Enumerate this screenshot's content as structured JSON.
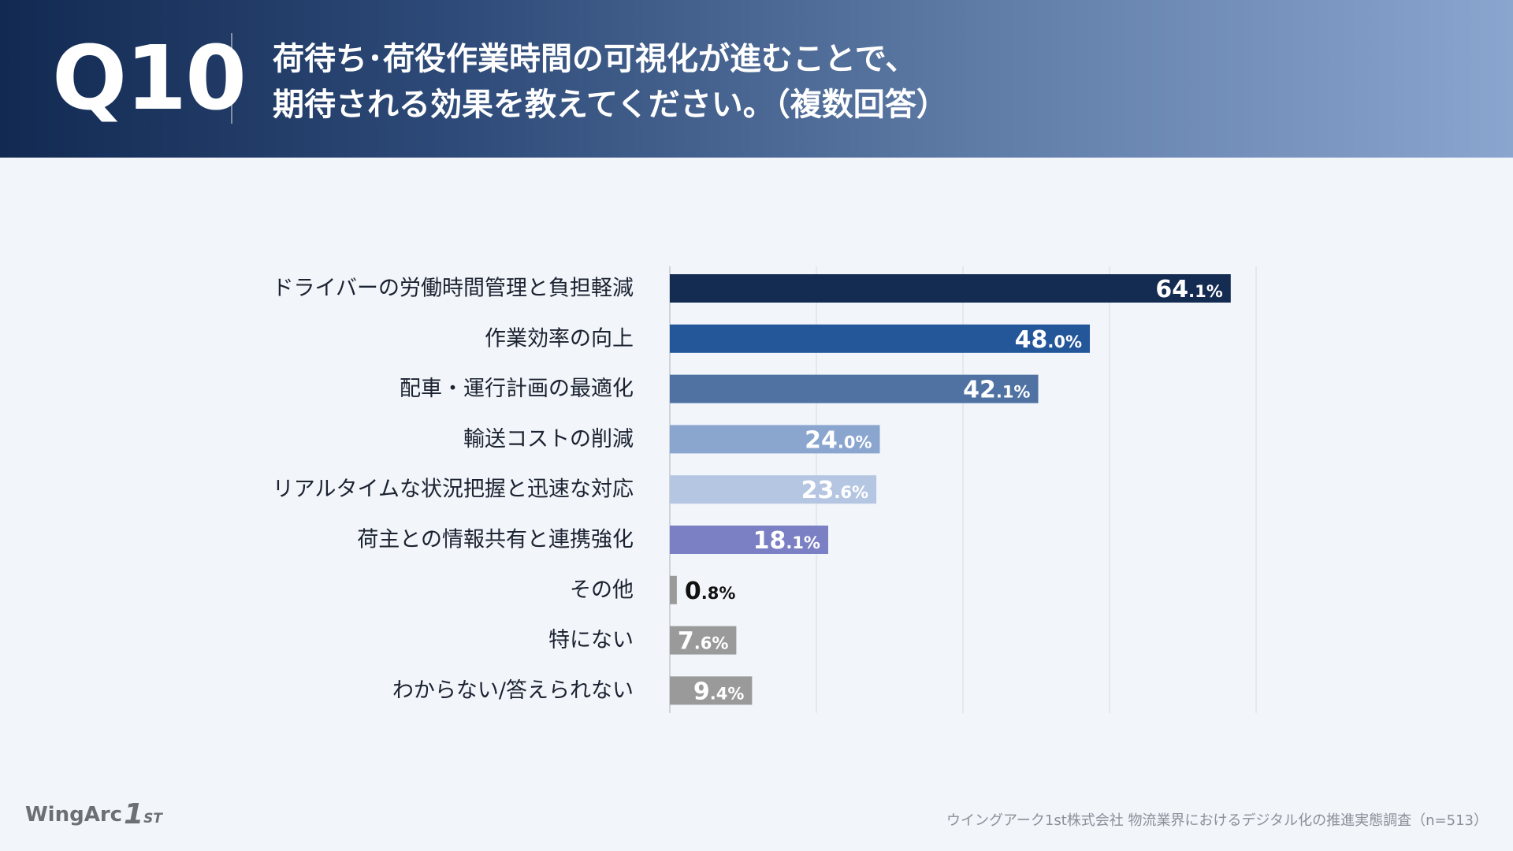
{
  "header": {
    "question_number": "Q10",
    "title_line1": "荷待ち･荷役作業時間の可視化が進むことで、",
    "title_line2": "期待される効果を教えてください。（複数回答）"
  },
  "chart_data": {
    "type": "bar",
    "orientation": "horizontal",
    "title": "荷待ち･荷役作業時間の可視化が進むことで、期待される効果を教えてください。（複数回答）",
    "categories": [
      "ドライバーの労働時間管理と負担軽減",
      "作業効率の向上",
      "配車・運行計画の最適化",
      "輸送コストの削減",
      "リアルタイムな状況把握と迅速な対応",
      "荷主との情報共有と連携強化",
      "その他",
      "特にない",
      "わからない/答えられない"
    ],
    "values": [
      64.1,
      48.0,
      42.1,
      24.0,
      23.6,
      18.1,
      0.8,
      7.6,
      9.4
    ],
    "labels_int": [
      "64",
      "48",
      "42",
      "24",
      "23",
      "18",
      "0",
      "7",
      "9"
    ],
    "labels_dec": [
      ".1%",
      ".0%",
      ".1%",
      ".0%",
      ".6%",
      ".1%",
      ".8%",
      ".6%",
      ".4%"
    ],
    "bar_colors": [
      "#142b52",
      "#24569a",
      "#4f72a3",
      "#8aa6cf",
      "#b5c6e2",
      "#7b7fc4",
      "#9a9a9a",
      "#9a9a9a",
      "#9a9a9a"
    ],
    "label_colors": [
      "#ffffff",
      "#ffffff",
      "#ffffff",
      "#ffffff",
      "#ffffff",
      "#ffffff",
      "#111111",
      "#ffffff",
      "#ffffff"
    ],
    "label_inside": [
      true,
      true,
      true,
      true,
      true,
      true,
      false,
      true,
      true
    ],
    "xlim": [
      0,
      67
    ],
    "gridlines": [
      0,
      16.75,
      33.5,
      50.25,
      67
    ],
    "xlabel": "",
    "ylabel": ""
  },
  "footer": {
    "logo_main": "WingArc",
    "logo_badge": "1",
    "logo_sub": "ST",
    "source": "ウイングアーク1st株式会社 物流業界におけるデジタル化の推進実態調査（n=513）"
  }
}
